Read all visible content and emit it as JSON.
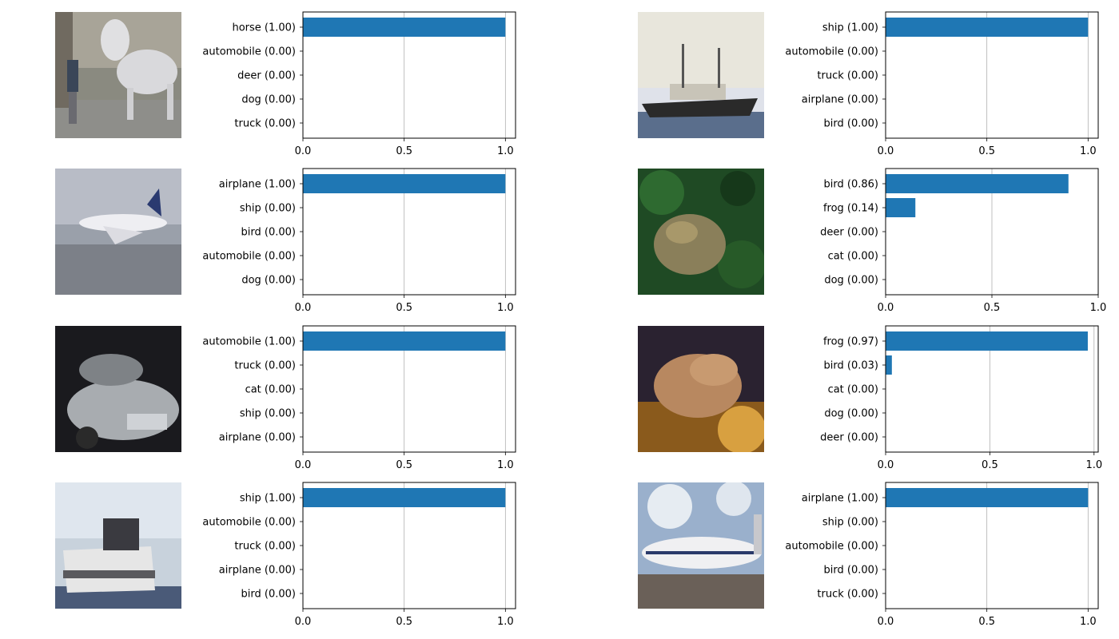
{
  "chart_data": [
    {
      "type": "bar",
      "orientation": "horizontal",
      "image": "horse photo",
      "categories": [
        "horse (1.00)",
        "automobile (0.00)",
        "deer (0.00)",
        "dog (0.00)",
        "truck (0.00)"
      ],
      "values": [
        1.0,
        0.0,
        0.0,
        0.0,
        0.0
      ],
      "xlim": [
        0,
        1.05
      ],
      "xticks": [
        "0.0",
        "0.5",
        "1.0"
      ],
      "grid": "x",
      "color": "#1f77b4"
    },
    {
      "type": "bar",
      "orientation": "horizontal",
      "image": "ship photo",
      "categories": [
        "ship (1.00)",
        "automobile (0.00)",
        "truck (0.00)",
        "airplane (0.00)",
        "bird (0.00)"
      ],
      "values": [
        1.0,
        0.0,
        0.0,
        0.0,
        0.0
      ],
      "xlim": [
        0,
        1.05
      ],
      "xticks": [
        "0.0",
        "0.5",
        "1.0"
      ],
      "grid": "x",
      "color": "#1f77b4"
    },
    {
      "type": "bar",
      "orientation": "horizontal",
      "image": "airplane photo",
      "categories": [
        "airplane (1.00)",
        "ship (0.00)",
        "bird (0.00)",
        "automobile (0.00)",
        "dog (0.00)"
      ],
      "values": [
        1.0,
        0.0,
        0.0,
        0.0,
        0.0
      ],
      "xlim": [
        0,
        1.05
      ],
      "xticks": [
        "0.0",
        "0.5",
        "1.0"
      ],
      "grid": "x",
      "color": "#1f77b4"
    },
    {
      "type": "bar",
      "orientation": "horizontal",
      "image": "frog photo",
      "categories": [
        "bird (0.86)",
        "frog (0.14)",
        "deer (0.00)",
        "cat (0.00)",
        "dog (0.00)"
      ],
      "values": [
        0.86,
        0.14,
        0.0,
        0.0,
        0.0
      ],
      "xlim": [
        0,
        1.0
      ],
      "xticks": [
        "0.0",
        "0.5",
        "1.0"
      ],
      "grid": "x",
      "color": "#1f77b4"
    },
    {
      "type": "bar",
      "orientation": "horizontal",
      "image": "automobile photo",
      "categories": [
        "automobile (1.00)",
        "truck (0.00)",
        "cat (0.00)",
        "ship (0.00)",
        "airplane (0.00)"
      ],
      "values": [
        1.0,
        0.0,
        0.0,
        0.0,
        0.0
      ],
      "xlim": [
        0,
        1.05
      ],
      "xticks": [
        "0.0",
        "0.5",
        "1.0"
      ],
      "grid": "x",
      "color": "#1f77b4"
    },
    {
      "type": "bar",
      "orientation": "horizontal",
      "image": "frog photo",
      "categories": [
        "frog (0.97)",
        "bird (0.03)",
        "cat (0.00)",
        "dog (0.00)",
        "deer (0.00)"
      ],
      "values": [
        0.97,
        0.03,
        0.0,
        0.0,
        0.0
      ],
      "xlim": [
        0,
        1.02
      ],
      "xticks": [
        "0.0",
        "0.5",
        "1.0"
      ],
      "grid": "x",
      "color": "#1f77b4"
    },
    {
      "type": "bar",
      "orientation": "horizontal",
      "image": "ship photo",
      "categories": [
        "ship (1.00)",
        "automobile (0.00)",
        "truck (0.00)",
        "airplane (0.00)",
        "bird (0.00)"
      ],
      "values": [
        1.0,
        0.0,
        0.0,
        0.0,
        0.0
      ],
      "xlim": [
        0,
        1.05
      ],
      "xticks": [
        "0.0",
        "0.5",
        "1.0"
      ],
      "grid": "x",
      "color": "#1f77b4"
    },
    {
      "type": "bar",
      "orientation": "horizontal",
      "image": "airplane photo",
      "categories": [
        "airplane (1.00)",
        "ship (0.00)",
        "automobile (0.00)",
        "bird (0.00)",
        "truck (0.00)"
      ],
      "values": [
        1.0,
        0.0,
        0.0,
        0.0,
        0.0
      ],
      "xlim": [
        0,
        1.05
      ],
      "xticks": [
        "0.0",
        "0.5",
        "1.0"
      ],
      "grid": "x",
      "color": "#1f77b4"
    }
  ]
}
